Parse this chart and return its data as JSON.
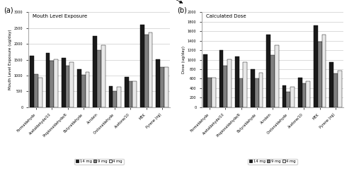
{
  "categories": [
    "Formaldehyde",
    "Acetaldehyde/10",
    "Propionaldehyde/6",
    "Butyraldehyde",
    "Acrolein",
    "Crotonaldehyde",
    "Acetone/10",
    "MEK",
    "Pyrene (ng)"
  ],
  "exposure": {
    "14mg": [
      1620,
      1720,
      1560,
      1190,
      2250,
      660,
      950,
      2600,
      1520
    ],
    "9mg": [
      1050,
      1470,
      1310,
      1020,
      1800,
      510,
      820,
      2280,
      1260
    ],
    "4mg": [
      930,
      1520,
      1430,
      1110,
      1960,
      650,
      820,
      2350,
      1260
    ]
  },
  "dose": {
    "14mg": [
      1110,
      1195,
      1065,
      800,
      1530,
      455,
      625,
      1720,
      950
    ],
    "9mg": [
      620,
      870,
      610,
      600,
      1095,
      330,
      500,
      1375,
      710
    ],
    "4mg": [
      615,
      1010,
      950,
      720,
      1300,
      430,
      550,
      1530,
      775
    ]
  },
  "colors": {
    "14mg": "#1a1a1a",
    "9mg": "#808080",
    "4mg": "#e8e8e8"
  },
  "exposure_ylim": [
    0,
    3000
  ],
  "dose_ylim": [
    0,
    2000
  ],
  "exposure_yticks": [
    0,
    500,
    1000,
    1500,
    2000,
    2500,
    3000
  ],
  "dose_yticks": [
    0,
    200,
    400,
    600,
    800,
    1000,
    1200,
    1400,
    1600,
    1800,
    2000
  ],
  "exposure_ylabel": "Mouth Level Exposure (ug/day)",
  "dose_ylabel": "Dose (ug/day)",
  "exposure_title": "Mouth Level Exposure",
  "dose_title": "Calculated Dose",
  "legend_labels": [
    "14 mg",
    "9 mg",
    "4 mg"
  ],
  "panel_a_label": "(a)",
  "panel_b_label": "(b)"
}
